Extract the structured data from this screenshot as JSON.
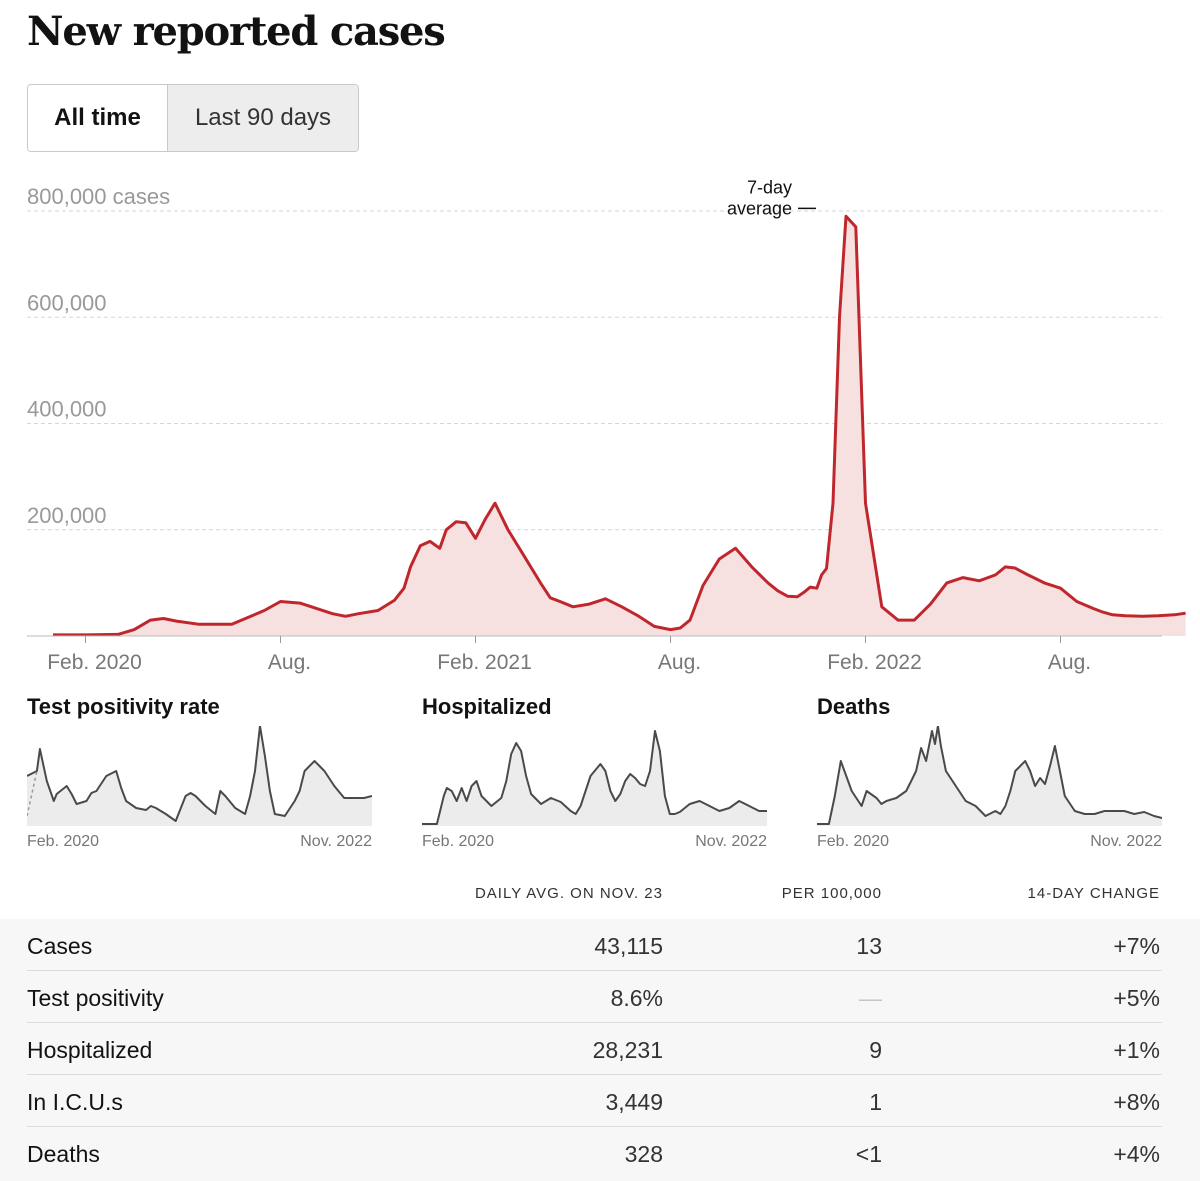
{
  "page_title": "New reported cases",
  "toggle": {
    "all_time": "All time",
    "last_90": "Last 90 days"
  },
  "colors": {
    "line": "#c0272d",
    "fill": "#f7e0e0",
    "mini_line": "#4a4a4a",
    "mini_fill": "#ececec",
    "grid": "#d6d6d6"
  },
  "chart_data": [
    {
      "type": "area",
      "title": "New reported cases",
      "ylabel": "cases",
      "ylim": [
        0,
        800000
      ],
      "y_ticks": [
        "200,000",
        "400,000",
        "600,000",
        "800,000 cases"
      ],
      "y_tick_values": [
        200000,
        400000,
        600000,
        800000
      ],
      "x_ticks": [
        "Feb. 2020",
        "Aug.",
        "Feb. 2021",
        "Aug.",
        "Feb. 2022",
        "Aug."
      ],
      "x_tick_months": [
        1,
        7,
        13,
        19,
        25,
        31
      ],
      "x_unit": "months since Jan. 2020",
      "annotation": {
        "line1": "7-day",
        "line2": "average",
        "x": 23.6,
        "y": 805000
      },
      "series": [
        {
          "name": "7-day average",
          "x": [
            0.0,
            1.0,
            2.0,
            2.5,
            3.0,
            3.4,
            3.8,
            4.5,
            5.5,
            6.5,
            7.0,
            7.6,
            8.2,
            8.6,
            9.0,
            9.4,
            10.0,
            10.5,
            10.8,
            11.0,
            11.3,
            11.6,
            11.9,
            12.1,
            12.4,
            12.7,
            13.0,
            13.3,
            13.6,
            14.0,
            14.5,
            15.0,
            15.3,
            15.6,
            16.0,
            16.5,
            17.0,
            17.5,
            18.0,
            18.5,
            19.0,
            19.3,
            19.6,
            20.0,
            20.5,
            21.0,
            21.5,
            22.0,
            22.3,
            22.6,
            22.9,
            23.1,
            23.3,
            23.5,
            23.65,
            23.8,
            24.0,
            24.2,
            24.4,
            24.7,
            25.0,
            25.5,
            26.0,
            26.5,
            27.0,
            27.5,
            28.0,
            28.5,
            29.0,
            29.3,
            29.6,
            30.0,
            30.5,
            31.0,
            31.5,
            32.0,
            32.3,
            32.6,
            33.0,
            33.5,
            34.0,
            34.5,
            34.85
          ],
          "values": [
            2000,
            2000,
            3000,
            12000,
            30000,
            33000,
            28000,
            22000,
            22000,
            48000,
            65000,
            62000,
            50000,
            42000,
            37000,
            42000,
            48000,
            67000,
            90000,
            130000,
            170000,
            178000,
            165000,
            200000,
            215000,
            213000,
            184000,
            220000,
            250000,
            200000,
            150000,
            100000,
            72000,
            65000,
            55000,
            60000,
            70000,
            55000,
            38000,
            18000,
            12000,
            15000,
            30000,
            95000,
            145000,
            165000,
            130000,
            100000,
            85000,
            75000,
            74000,
            82000,
            92000,
            90000,
            115000,
            127000,
            250000,
            600000,
            790000,
            770000,
            250000,
            55000,
            30000,
            30000,
            60000,
            100000,
            110000,
            104000,
            115000,
            130000,
            128000,
            115000,
            100000,
            90000,
            65000,
            52000,
            45000,
            40000,
            38000,
            37000,
            38000,
            40000,
            43000
          ]
        }
      ]
    },
    {
      "type": "area",
      "title": "Test positivity rate",
      "x_start": "Feb. 2020",
      "x_end": "Nov. 2022",
      "x": [
        0,
        1,
        1.3,
        2,
        2.7,
        3,
        4,
        4.5,
        5,
        6,
        6.5,
        7,
        8,
        9,
        9.5,
        10,
        11,
        12,
        12.5,
        13,
        14,
        15,
        16,
        16.5,
        17,
        18,
        19,
        19.5,
        20,
        21,
        22,
        22.5,
        23,
        23.5,
        24,
        24.5,
        25,
        26,
        27,
        27.5,
        28,
        29,
        29.3,
        30,
        31,
        32,
        33,
        34,
        34.8
      ],
      "values": [
        0.5,
        0.55,
        0.77,
        0.45,
        0.25,
        0.32,
        0.4,
        0.32,
        0.22,
        0.25,
        0.33,
        0.35,
        0.5,
        0.55,
        0.38,
        0.25,
        0.18,
        0.16,
        0.2,
        0.18,
        0.12,
        0.05,
        0.3,
        0.33,
        0.3,
        0.2,
        0.12,
        0.35,
        0.3,
        0.18,
        0.12,
        0.3,
        0.55,
        1.0,
        0.7,
        0.35,
        0.12,
        0.1,
        0.25,
        0.35,
        0.55,
        0.65,
        0.62,
        0.55,
        0.4,
        0.28,
        0.28,
        0.28,
        0.3
      ]
    },
    {
      "type": "area",
      "title": "Hospitalized",
      "x_start": "Feb. 2020",
      "x_end": "Nov. 2022",
      "x": [
        0,
        1.5,
        2.2,
        2.5,
        3,
        3.5,
        4,
        4.5,
        5,
        5.5,
        6,
        7,
        8,
        8.5,
        9,
        9.5,
        10,
        10.5,
        11,
        12,
        13,
        14,
        15,
        15.5,
        16,
        17,
        18,
        18.5,
        19,
        19.5,
        20,
        20.5,
        21,
        21.5,
        22,
        22.5,
        23,
        23.5,
        24,
        24.5,
        25,
        25.5,
        26,
        27,
        28,
        29,
        30,
        31,
        32,
        33,
        34,
        34.8
      ],
      "values": [
        0.02,
        0.02,
        0.3,
        0.38,
        0.35,
        0.25,
        0.38,
        0.25,
        0.4,
        0.45,
        0.3,
        0.2,
        0.28,
        0.45,
        0.72,
        0.83,
        0.75,
        0.5,
        0.32,
        0.22,
        0.28,
        0.24,
        0.15,
        0.12,
        0.2,
        0.5,
        0.62,
        0.55,
        0.35,
        0.25,
        0.32,
        0.45,
        0.52,
        0.48,
        0.42,
        0.4,
        0.55,
        0.95,
        0.75,
        0.3,
        0.12,
        0.12,
        0.14,
        0.22,
        0.25,
        0.2,
        0.15,
        0.18,
        0.25,
        0.2,
        0.15,
        0.15
      ]
    },
    {
      "type": "area",
      "title": "Deaths",
      "x_start": "Feb. 2020",
      "x_end": "Nov. 2022",
      "x": [
        0,
        1.2,
        1.8,
        2.4,
        3.5,
        4.5,
        5,
        6,
        6.5,
        7,
        8,
        9,
        9.5,
        10,
        10.5,
        11,
        11.3,
        11.6,
        11.9,
        12.2,
        12.5,
        13,
        14,
        15,
        16,
        17,
        18,
        18.5,
        19,
        19.5,
        20,
        21,
        21.5,
        22,
        22.5,
        23,
        23.5,
        24,
        24.5,
        25,
        26,
        27,
        28,
        29,
        30,
        31,
        32,
        33,
        34,
        34.8
      ],
      "values": [
        0.02,
        0.02,
        0.3,
        0.65,
        0.35,
        0.2,
        0.35,
        0.28,
        0.22,
        0.25,
        0.28,
        0.35,
        0.45,
        0.55,
        0.78,
        0.65,
        0.8,
        0.95,
        0.82,
        1.0,
        0.8,
        0.55,
        0.4,
        0.25,
        0.2,
        0.1,
        0.15,
        0.12,
        0.2,
        0.35,
        0.55,
        0.65,
        0.55,
        0.4,
        0.48,
        0.42,
        0.6,
        0.8,
        0.55,
        0.3,
        0.15,
        0.12,
        0.12,
        0.15,
        0.15,
        0.15,
        0.12,
        0.14,
        0.1,
        0.08
      ]
    }
  ],
  "table": {
    "headers": [
      "DAILY AVG. ON NOV. 23",
      "PER 100,000",
      "14-DAY CHANGE"
    ],
    "rows": [
      {
        "label": "Cases",
        "daily": "43,115",
        "per100k": "13",
        "change": "+7%"
      },
      {
        "label": "Test positivity",
        "daily": "8.6%",
        "per100k": "—",
        "change": "+5%"
      },
      {
        "label": "Hospitalized",
        "daily": "28,231",
        "per100k": "9",
        "change": "+1%"
      },
      {
        "label": "In I.C.U.s",
        "daily": "3,449",
        "per100k": "1",
        "change": "+8%"
      },
      {
        "label": "Deaths",
        "daily": "328",
        "per100k": "<1",
        "change": "+4%"
      }
    ]
  }
}
